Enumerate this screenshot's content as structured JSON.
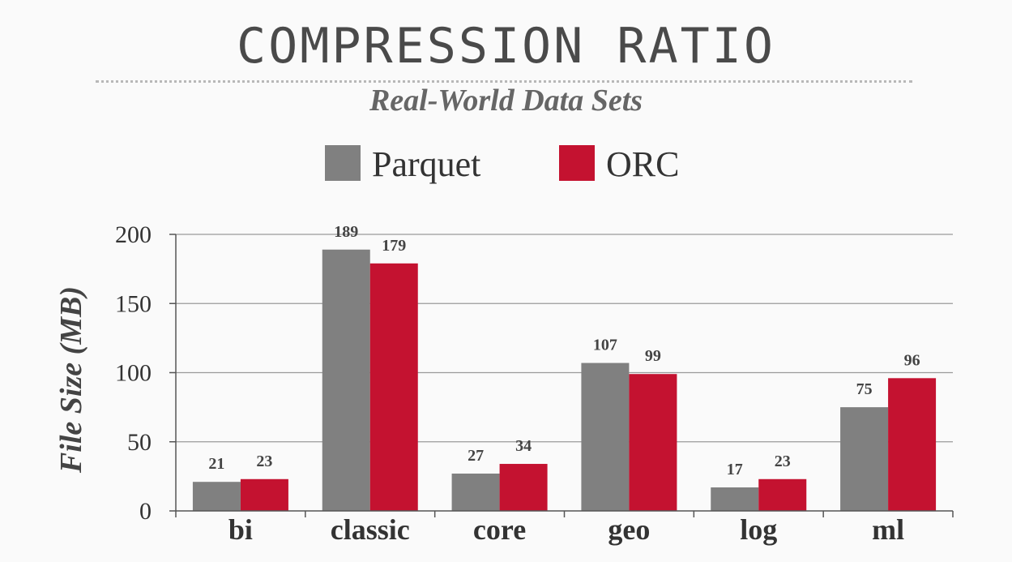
{
  "header": {
    "title": "COMPRESSION RATIO",
    "subtitle": "Real-World Data Sets"
  },
  "colors": {
    "background": "#fafafa",
    "gridline": "#9a9a9a",
    "axis": "#555555"
  },
  "chart_data": {
    "type": "bar",
    "categories": [
      "bi",
      "classic",
      "core",
      "geo",
      "log",
      "ml"
    ],
    "series": [
      {
        "name": "Parquet",
        "color": "#808080",
        "values": [
          21,
          189,
          27,
          107,
          17,
          75
        ]
      },
      {
        "name": "ORC",
        "color": "#c41230",
        "values": [
          23,
          179,
          34,
          99,
          23,
          96
        ]
      }
    ],
    "xlabel": "",
    "ylabel": "File Size (MB)",
    "ylim": [
      0,
      200
    ],
    "yticks": [
      0,
      50,
      100,
      150,
      200
    ],
    "grid": true,
    "legend_position": "top-center",
    "data_labels": true
  }
}
